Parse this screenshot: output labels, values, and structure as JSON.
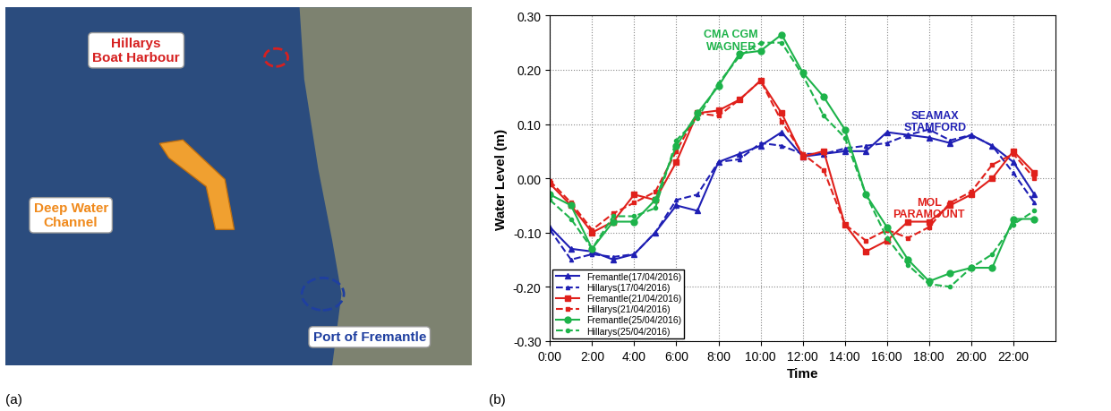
{
  "chart_data": {
    "type": "line",
    "x_label": "Time",
    "y_label": "Water Level (m)",
    "x": [
      0,
      1,
      2,
      3,
      4,
      5,
      6,
      7,
      8,
      9,
      10,
      11,
      12,
      13,
      14,
      15,
      16,
      17,
      18,
      19,
      20,
      21,
      22,
      23
    ],
    "xlim": [
      0,
      24
    ],
    "xticks": [
      {
        "value": 0,
        "label": "0:00"
      },
      {
        "value": 2,
        "label": "2:00"
      },
      {
        "value": 4,
        "label": "4:00"
      },
      {
        "value": 6,
        "label": "6:00"
      },
      {
        "value": 8,
        "label": "8:00"
      },
      {
        "value": 10,
        "label": "10:00"
      },
      {
        "value": 12,
        "label": "12:00"
      },
      {
        "value": 14,
        "label": "14:00"
      },
      {
        "value": 16,
        "label": "16:00"
      },
      {
        "value": 18,
        "label": "18:00"
      },
      {
        "value": 20,
        "label": "20:00"
      },
      {
        "value": 22,
        "label": "22:00"
      }
    ],
    "ylim": [
      -0.3,
      0.3
    ],
    "yticks": [
      {
        "value": -0.3,
        "label": "-0.30"
      },
      {
        "value": -0.2,
        "label": "-0.20"
      },
      {
        "value": -0.1,
        "label": "-0.10"
      },
      {
        "value": 0,
        "label": "0.00"
      },
      {
        "value": 0.1,
        "label": "0.10"
      },
      {
        "value": 0.2,
        "label": "0.20"
      },
      {
        "value": 0.3,
        "label": "0.30"
      }
    ],
    "grid": true,
    "legend": "lower left",
    "series": [
      {
        "name": "Fremantle(17/04/2016)",
        "color": "#1f1fb4",
        "line_style": "solid",
        "marker": "triangle",
        "values": [
          -0.09,
          -0.13,
          -0.135,
          -0.15,
          -0.14,
          -0.1,
          -0.05,
          -0.06,
          0.03,
          0.045,
          0.06,
          0.085,
          0.04,
          0.045,
          0.05,
          0.05,
          0.085,
          0.08,
          0.075,
          0.065,
          0.08,
          0.06,
          0.03,
          -0.03
        ]
      },
      {
        "name": "Hillarys(17/04/2016)",
        "color": "#1f1fb4",
        "line_style": "dashed",
        "marker": "triangle",
        "values": [
          -0.095,
          -0.15,
          -0.14,
          -0.145,
          -0.14,
          -0.1,
          -0.04,
          -0.03,
          0.03,
          0.035,
          0.065,
          0.06,
          0.045,
          0.045,
          0.055,
          0.06,
          0.065,
          0.08,
          0.09,
          0.07,
          0.08,
          0.06,
          0.01,
          -0.045
        ]
      },
      {
        "name": "Fremantle(21/04/2016)",
        "color": "#e0201b",
        "line_style": "solid",
        "marker": "square",
        "values": [
          -0.01,
          -0.05,
          -0.1,
          -0.08,
          -0.03,
          -0.04,
          0.03,
          0.12,
          0.125,
          0.145,
          0.18,
          0.12,
          0.04,
          0.05,
          -0.085,
          -0.135,
          -0.115,
          -0.08,
          -0.08,
          -0.05,
          -0.03,
          0.0,
          0.05,
          0.01
        ]
      },
      {
        "name": "Hillarys(21/04/2016)",
        "color": "#e0201b",
        "line_style": "dashed",
        "marker": "square",
        "values": [
          -0.005,
          -0.045,
          -0.095,
          -0.065,
          -0.045,
          -0.025,
          0.05,
          0.12,
          0.115,
          0.145,
          0.18,
          0.105,
          0.045,
          0.015,
          -0.085,
          -0.115,
          -0.095,
          -0.11,
          -0.09,
          -0.045,
          -0.025,
          0.025,
          0.045,
          0.0
        ]
      },
      {
        "name": "Fremantle(25/04/2016)",
        "color": "#1db34a",
        "line_style": "solid",
        "marker": "circle",
        "values": [
          -0.03,
          -0.05,
          -0.13,
          -0.08,
          -0.08,
          -0.04,
          0.06,
          0.12,
          0.17,
          0.23,
          0.235,
          0.265,
          0.195,
          0.15,
          0.09,
          -0.03,
          -0.09,
          -0.15,
          -0.19,
          -0.175,
          -0.165,
          -0.165,
          -0.075,
          -0.075
        ]
      },
      {
        "name": "Hillarys(25/04/2016)",
        "color": "#1db34a",
        "line_style": "dashed",
        "marker": "circle",
        "values": [
          -0.04,
          -0.075,
          -0.13,
          -0.07,
          -0.07,
          -0.055,
          0.07,
          0.11,
          0.175,
          0.225,
          0.25,
          0.25,
          0.19,
          0.115,
          0.075,
          -0.03,
          -0.11,
          -0.16,
          -0.195,
          -0.2,
          -0.165,
          -0.14,
          -0.085,
          -0.06
        ]
      }
    ],
    "annotations": [
      {
        "text": "CMA CGM\nWAGNER",
        "color": "#1db34a"
      },
      {
        "text": "SEAMAX\nSTAMFORD",
        "color": "#1f1fb4"
      },
      {
        "text": "MOL\nPARAMOUNT",
        "color": "#e0201b"
      }
    ]
  },
  "map": {
    "labels": [
      {
        "text": "Hillarys\nBoat Harbour",
        "color": "#d62020"
      },
      {
        "text": "Deep Water\nChannel",
        "color": "#f08a1c"
      },
      {
        "text": "Port of Fremantle",
        "color": "#1f3fa0"
      }
    ]
  },
  "panel_labels": [
    "(a)",
    "(b)"
  ]
}
